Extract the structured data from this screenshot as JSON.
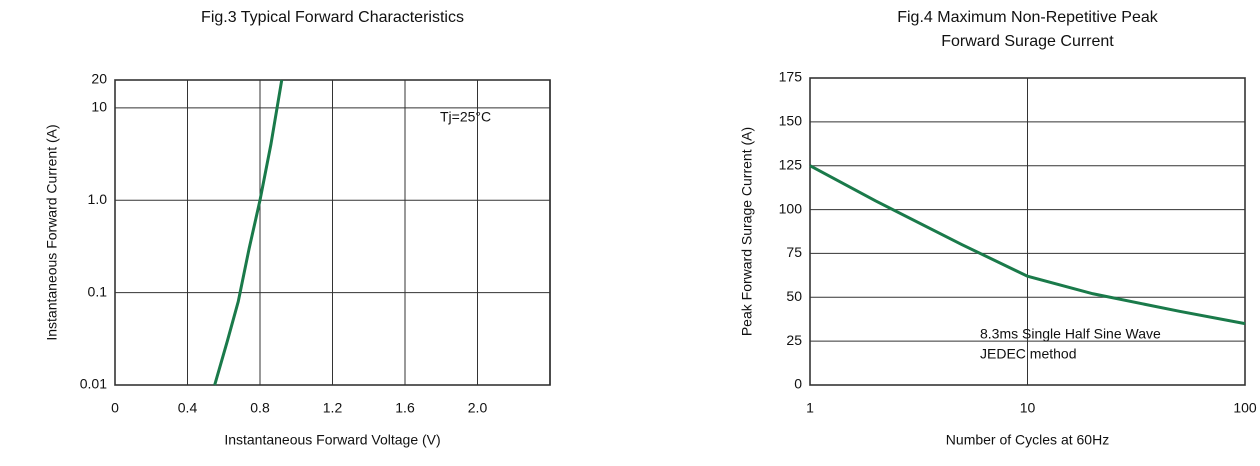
{
  "chart_data": [
    {
      "type": "line",
      "title": "Fig.3  Typical   Forward   Characteristics",
      "xlabel": "Instantaneous Forward Voltage (V)",
      "ylabel": "Instantaneous Forward Current (A)",
      "annotations": [
        "Tj=25°C"
      ],
      "yscale": "log",
      "x": [
        0.55,
        0.62,
        0.68,
        0.74,
        0.8,
        0.86,
        0.92
      ],
      "series": [
        {
          "color": "#1a7a4a",
          "values": [
            0.01,
            0.03,
            0.08,
            0.3,
            1,
            4,
            20
          ]
        }
      ],
      "xlim": [
        0,
        2.4
      ],
      "xticks": [
        0,
        0.4,
        0.8,
        1.2,
        1.6,
        {
          "value": 2,
          "label": "2.0"
        }
      ],
      "ylim": [
        0.01,
        20
      ],
      "yticks": [
        0.01,
        0.1,
        {
          "value": 1,
          "label": "1.0"
        },
        10,
        20
      ],
      "grid": true
    },
    {
      "type": "line",
      "title": [
        "Fig.4  Maximum Non-Repetitive Peak",
        "Forward Surage Current"
      ],
      "xlabel": "Number of Cycles at 60Hz",
      "ylabel": "Peak Forward Surage Current (A)",
      "annotations": [
        "8.3ms Single Half Sine Wave",
        "JEDEC method"
      ],
      "xscale": "log",
      "x": [
        1,
        2,
        5,
        10,
        20,
        50,
        100
      ],
      "series": [
        {
          "color": "#1a7a4a",
          "values": [
            125,
            105,
            80,
            62,
            52,
            42,
            35
          ]
        }
      ],
      "xlim": [
        1,
        100
      ],
      "xticks": [
        1,
        10,
        100
      ],
      "ylim": [
        0,
        175
      ],
      "yticks": [
        0,
        25,
        50,
        75,
        100,
        125,
        150,
        175
      ],
      "grid": true
    }
  ]
}
